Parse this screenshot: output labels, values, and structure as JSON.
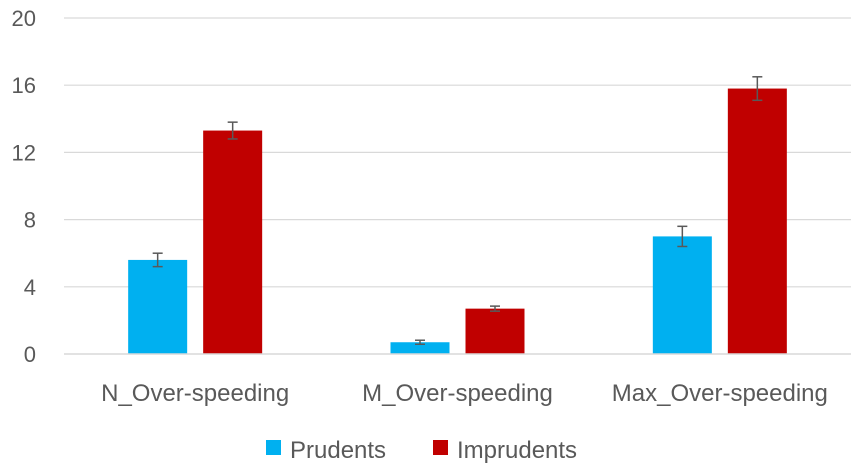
{
  "chart_data": {
    "type": "bar",
    "categories": [
      "N_Over-speeding",
      "M_Over-speeding",
      "Max_Over-speeding"
    ],
    "series": [
      {
        "name": "Prudents",
        "color": "#00b0f0",
        "values": [
          5.6,
          0.7,
          7.0
        ],
        "errors": [
          0.4,
          0.12,
          0.6
        ]
      },
      {
        "name": "Imprudents",
        "color": "#c00000",
        "values": [
          13.3,
          2.7,
          15.8
        ],
        "errors": [
          0.5,
          0.15,
          0.7
        ]
      }
    ],
    "yticks": [
      0,
      4,
      8,
      12,
      16,
      20
    ],
    "ylim": [
      0,
      20
    ],
    "grid": true,
    "legend": "bottom",
    "title": "",
    "xlabel": "",
    "ylabel": ""
  }
}
